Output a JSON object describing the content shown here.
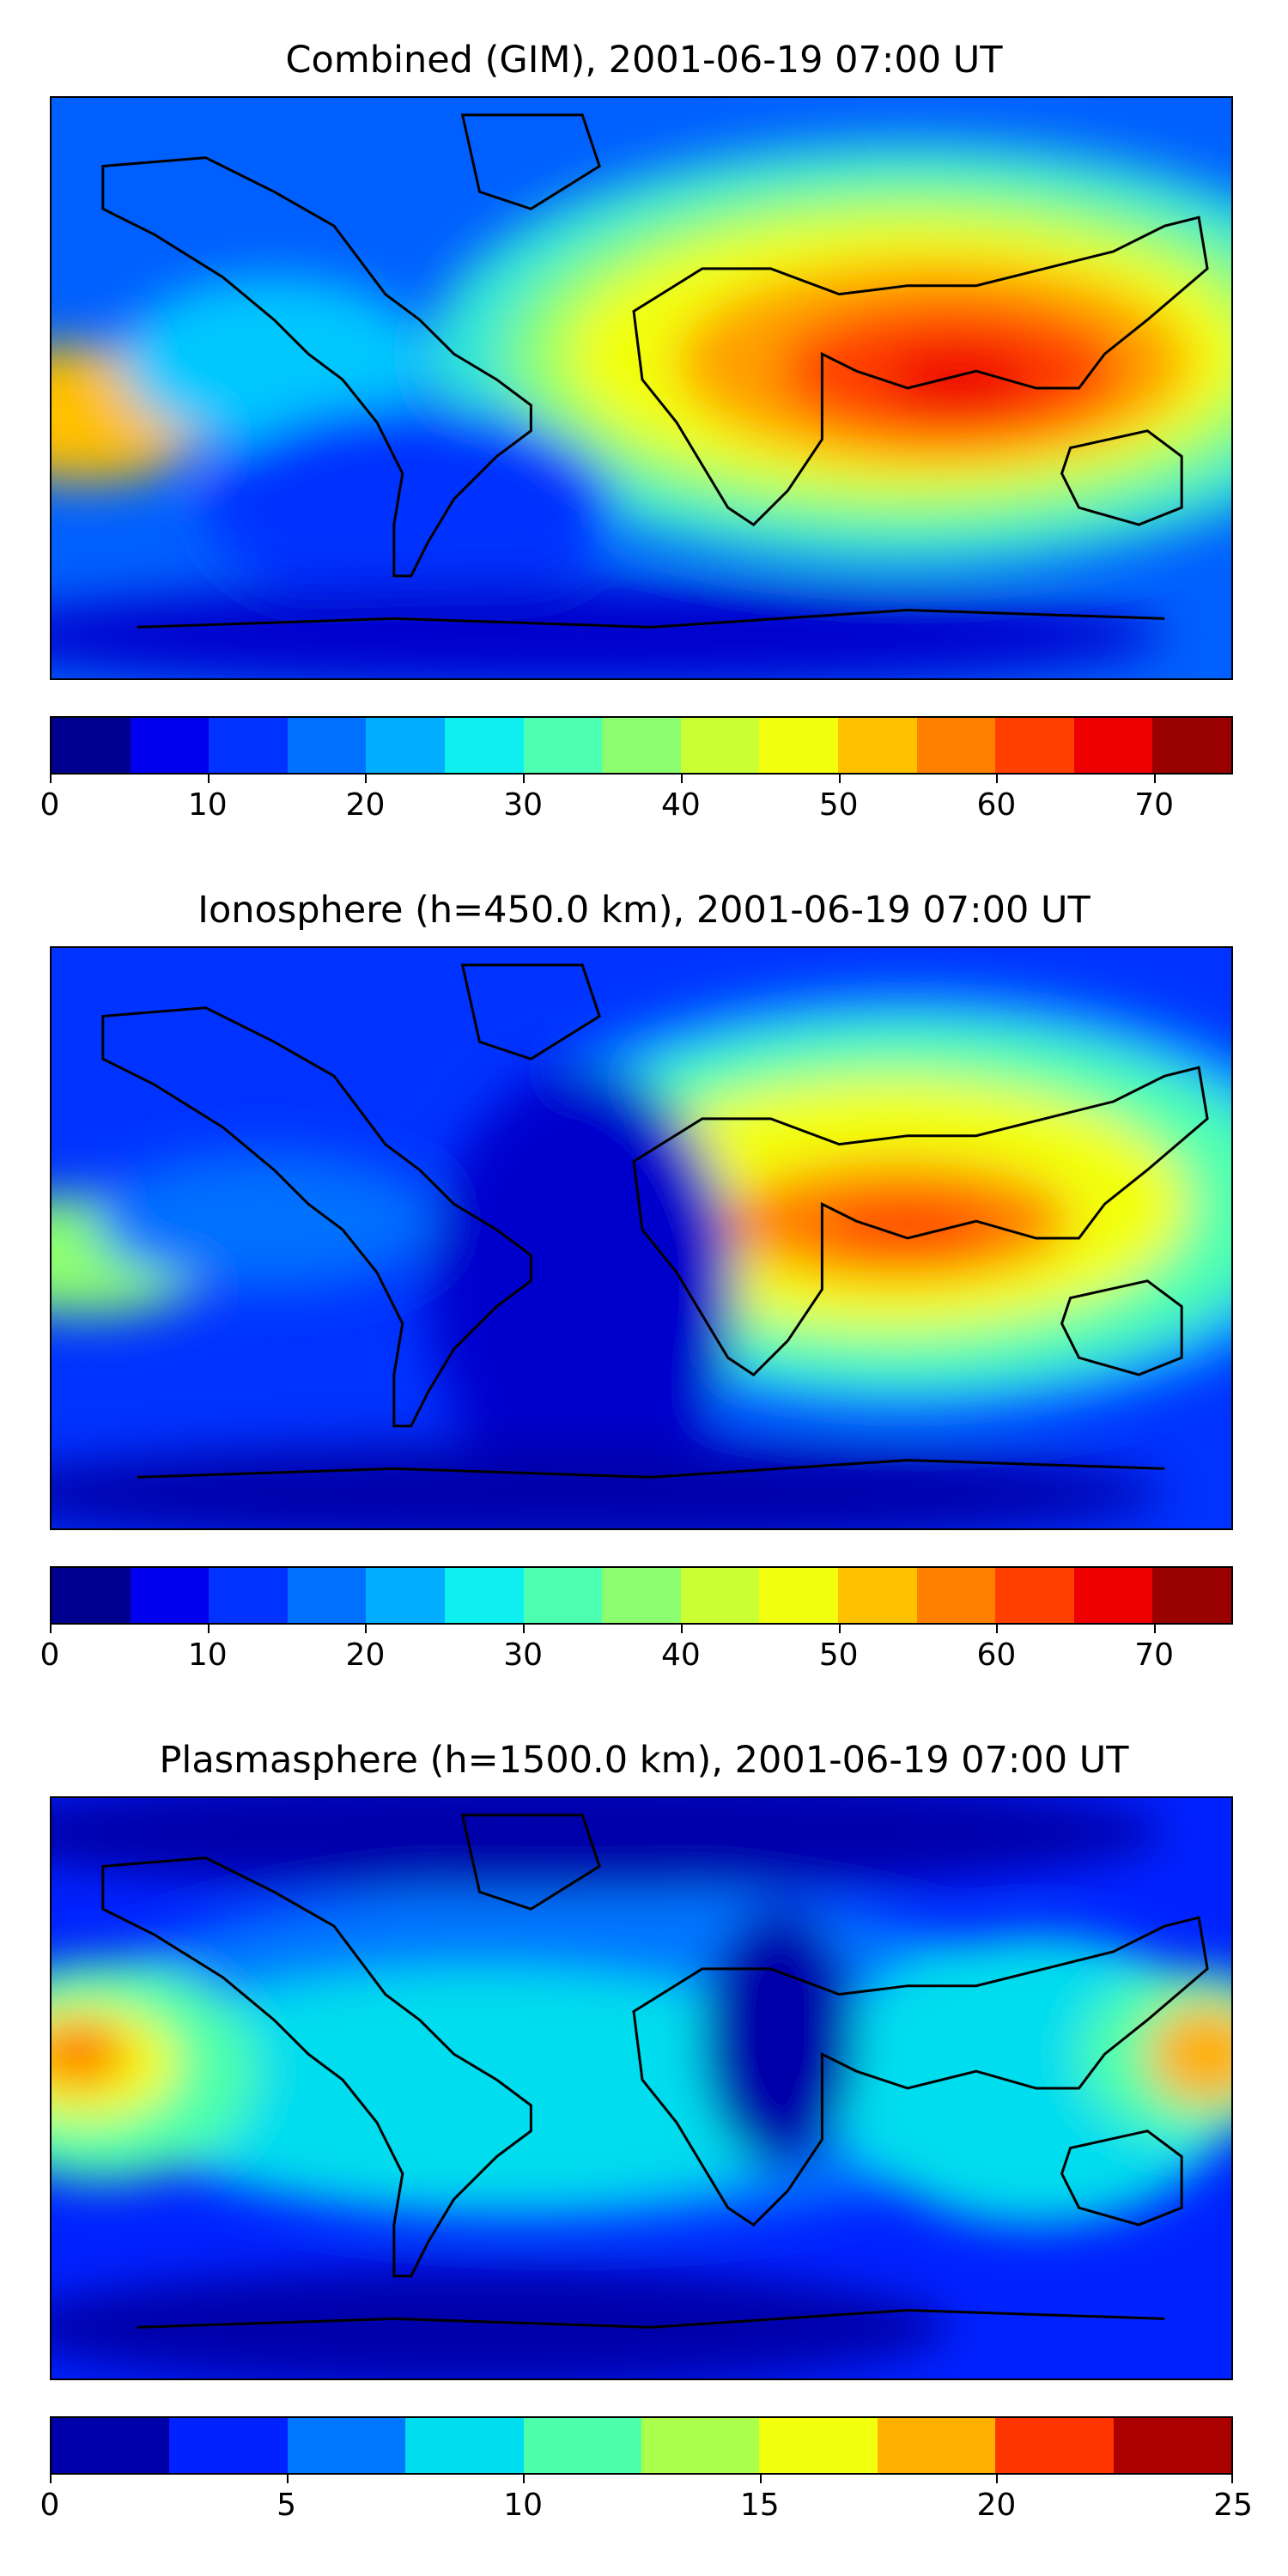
{
  "panels": [
    {
      "title": "Combined (GIM), 2001-06-19 07:00 UT",
      "colorbar": {
        "min": 0,
        "max": 75,
        "step": 5,
        "ticks": [
          0,
          10,
          20,
          30,
          40,
          50,
          60,
          70
        ],
        "colors": [
          "#00008f",
          "#0000ee",
          "#0033ff",
          "#0070ff",
          "#00adff",
          "#0fefef",
          "#4dffb0",
          "#8cff70",
          "#c9ff33",
          "#f2ff0f",
          "#ffc000",
          "#ff8000",
          "#ff4000",
          "#ee0000",
          "#990000"
        ]
      }
    },
    {
      "title": "Ionosphere  (h=450.0 km), 2001-06-19 07:00 UT",
      "colorbar": {
        "min": 0,
        "max": 75,
        "step": 5,
        "ticks": [
          0,
          10,
          20,
          30,
          40,
          50,
          60,
          70
        ],
        "colors": [
          "#00008f",
          "#0000ee",
          "#0033ff",
          "#0070ff",
          "#00adff",
          "#0fefef",
          "#4dffb0",
          "#8cff70",
          "#c9ff33",
          "#f2ff0f",
          "#ffc000",
          "#ff8000",
          "#ff4000",
          "#ee0000",
          "#990000"
        ]
      }
    },
    {
      "title": "Plasmasphere (h=1500.0 km), 2001-06-19 07:00 UT",
      "colorbar": {
        "min": 0,
        "max": 25,
        "step": 2.5,
        "ticks": [
          0,
          5,
          10,
          15,
          20,
          25
        ],
        "colors": [
          "#0000aa",
          "#0022ff",
          "#0077ff",
          "#00ddee",
          "#4dffaa",
          "#aaff4d",
          "#f2ff0f",
          "#ffb000",
          "#ff3500",
          "#aa0000"
        ]
      }
    }
  ]
}
